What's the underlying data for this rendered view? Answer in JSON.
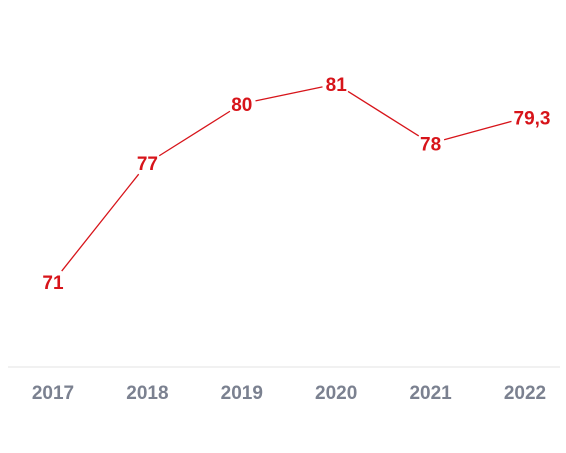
{
  "chart_data": {
    "type": "line",
    "categories": [
      "2017",
      "2018",
      "2019",
      "2020",
      "2021",
      "2022"
    ],
    "series": [
      {
        "values": [
          71,
          77,
          80,
          81,
          78,
          79.3
        ],
        "data_labels": [
          "71",
          "77",
          "80",
          "81",
          "78",
          "79,3"
        ],
        "color": "#d7141a"
      }
    ],
    "ylim": [
      63,
      87
    ],
    "grid": false,
    "legend": "none",
    "axis_line_color": "#e3e3e3",
    "tick_label_color": "#7b8190"
  }
}
